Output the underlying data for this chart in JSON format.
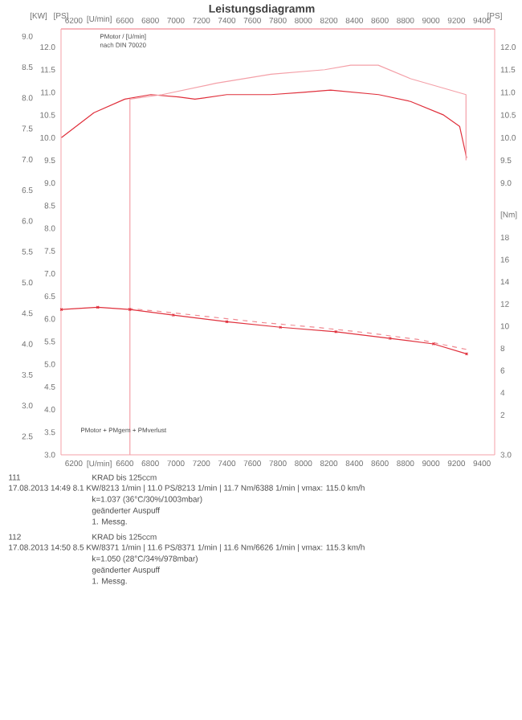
{
  "chart_data": {
    "type": "line",
    "title": "Leistungsdiagramm",
    "xlim": [
      6100,
      9500
    ],
    "xticks": [
      6200,
      {
        "value": 6400,
        "label": "[U/min]"
      },
      6600,
      6800,
      7000,
      7200,
      7400,
      7600,
      7800,
      8000,
      8200,
      8400,
      8600,
      8800,
      9000,
      9200,
      9400
    ],
    "x2lim": [
      6100,
      9500
    ],
    "x2ticks": [
      6200,
      {
        "value": 6400,
        "label": "[U/min]"
      },
      6600,
      6800,
      7000,
      7200,
      7400,
      7600,
      7800,
      8000,
      8200,
      8400,
      8600,
      8800,
      9000,
      9200,
      9400
    ],
    "ylabel": "[PS]",
    "ylim": [
      3.0,
      12.4
    ],
    "yticks": [
      {
        "value": 3,
        "label": "3.0"
      },
      {
        "value": 3.5,
        "label": "3.5"
      },
      {
        "value": 4,
        "label": "4.0"
      },
      {
        "value": 4.5,
        "label": "4.5"
      },
      {
        "value": 5,
        "label": "5.0"
      },
      {
        "value": 5.5,
        "label": "5.5"
      },
      {
        "value": 6,
        "label": "6.0"
      },
      {
        "value": 6.5,
        "label": "6.5"
      },
      {
        "value": 7,
        "label": "7.0"
      },
      {
        "value": 7.5,
        "label": "7.5"
      },
      {
        "value": 8,
        "label": "8.0"
      },
      {
        "value": 8.5,
        "label": "8.5"
      },
      {
        "value": 9,
        "label": "9.0"
      },
      {
        "value": 9.5,
        "label": "9.5"
      },
      {
        "value": 10,
        "label": "10.0"
      },
      {
        "value": 10.5,
        "label": "10.5"
      },
      {
        "value": 11,
        "label": "11.0"
      },
      {
        "value": 11.5,
        "label": "11.5"
      },
      {
        "value": 12,
        "label": "12.0"
      }
    ],
    "y2lim": [
      -1.6,
      36.8
    ],
    "y2ticks": [
      2,
      4,
      6,
      8,
      10,
      12,
      14,
      16,
      18,
      {
        "value": 20,
        "label": "[Nm]"
      }
    ],
    "y3label": "[KW]",
    "y3lim": [
      2.2,
      9.12
    ],
    "y3ticks": [
      {
        "value": 2.5,
        "label": "2.5"
      },
      {
        "value": 3,
        "label": "3.0"
      },
      {
        "value": 3.5,
        "label": "3.5"
      },
      {
        "value": 4,
        "label": "4.0"
      },
      {
        "value": 4.5,
        "label": "4.5"
      },
      {
        "value": 5,
        "label": "5.0"
      },
      {
        "value": 5.5,
        "label": "5.5"
      },
      {
        "value": 6,
        "label": "6.0"
      },
      {
        "value": 6.5,
        "label": "6.5"
      },
      {
        "value": 7,
        "label": "7.0"
      },
      {
        "value": 7.5,
        "label": "7.5"
      },
      {
        "value": 8,
        "label": "8.0"
      },
      {
        "value": 8.5,
        "label": "8.5"
      },
      {
        "value": 9,
        "label": "9.0"
      }
    ],
    "series": [
      {
        "color": "#e0303c",
        "x": [
          6103,
          6358,
          6600,
          6804,
          7020,
          7150,
          7400,
          7745,
          8000,
          8213,
          8590,
          8840,
          9100,
          9225,
          9280
        ],
        "values": [
          10.0,
          10.55,
          10.85,
          10.95,
          10.9,
          10.85,
          10.95,
          10.95,
          11.0,
          11.05,
          10.95,
          10.8,
          10.5,
          10.25,
          9.55
        ]
      },
      {
        "color": "#f4a0a8",
        "x": [
          6640,
          6640,
          6893,
          7313,
          7746,
          8167,
          8371,
          8587,
          8842,
          9275,
          9275
        ],
        "values": [
          3.0,
          10.85,
          10.95,
          11.2,
          11.4,
          11.5,
          11.6,
          11.6,
          11.3,
          10.95,
          9.5
        ]
      },
      {
        "color": "#e0303c",
        "axis": "y2",
        "marker": "cross",
        "x": [
          6103,
          6388,
          6640,
          6980,
          7400,
          7820,
          8255,
          8680,
          9020,
          9280
        ],
        "values": [
          11.5,
          11.7,
          11.5,
          11.0,
          10.4,
          9.9,
          9.5,
          8.9,
          8.4,
          7.5
        ]
      },
      {
        "color": "#f08890",
        "axis": "y2",
        "line_style": "dashed",
        "x": [
          6626,
          6900,
          7300,
          7700,
          8100,
          8500,
          8900,
          9280
        ],
        "values": [
          11.6,
          11.3,
          10.8,
          10.3,
          9.9,
          9.4,
          8.8,
          7.9
        ]
      }
    ],
    "annotations": [
      "PMotor / [U/min]",
      "nach DIN 70020",
      "PMotor + PMgem + PMverlust",
      "111",
      "KRAD bis   125ccm",
      "17.08.2013  14:49  8.1 KW/8213 1/min  |  11.0 PS/8213 1/min  |  11.7 Nm/6388 1/min  |  vmax: 115.0 km/h",
      "k=1.037 (36°C/30%/1003mbar)",
      "geänderter Auspuff",
      "1. Messg.",
      "112",
      "KRAD bis   125ccm",
      "17.08.2013  14:50  8.5 KW/8371 1/min  |  11.6 PS/8371 1/min  |  11.6 Nm/6626 1/min  |  vmax: 115.3 km/h",
      "k=1.050 (28°C/34%/978mbar)",
      "geänderter Auspuff",
      "1. Messg."
    ]
  }
}
